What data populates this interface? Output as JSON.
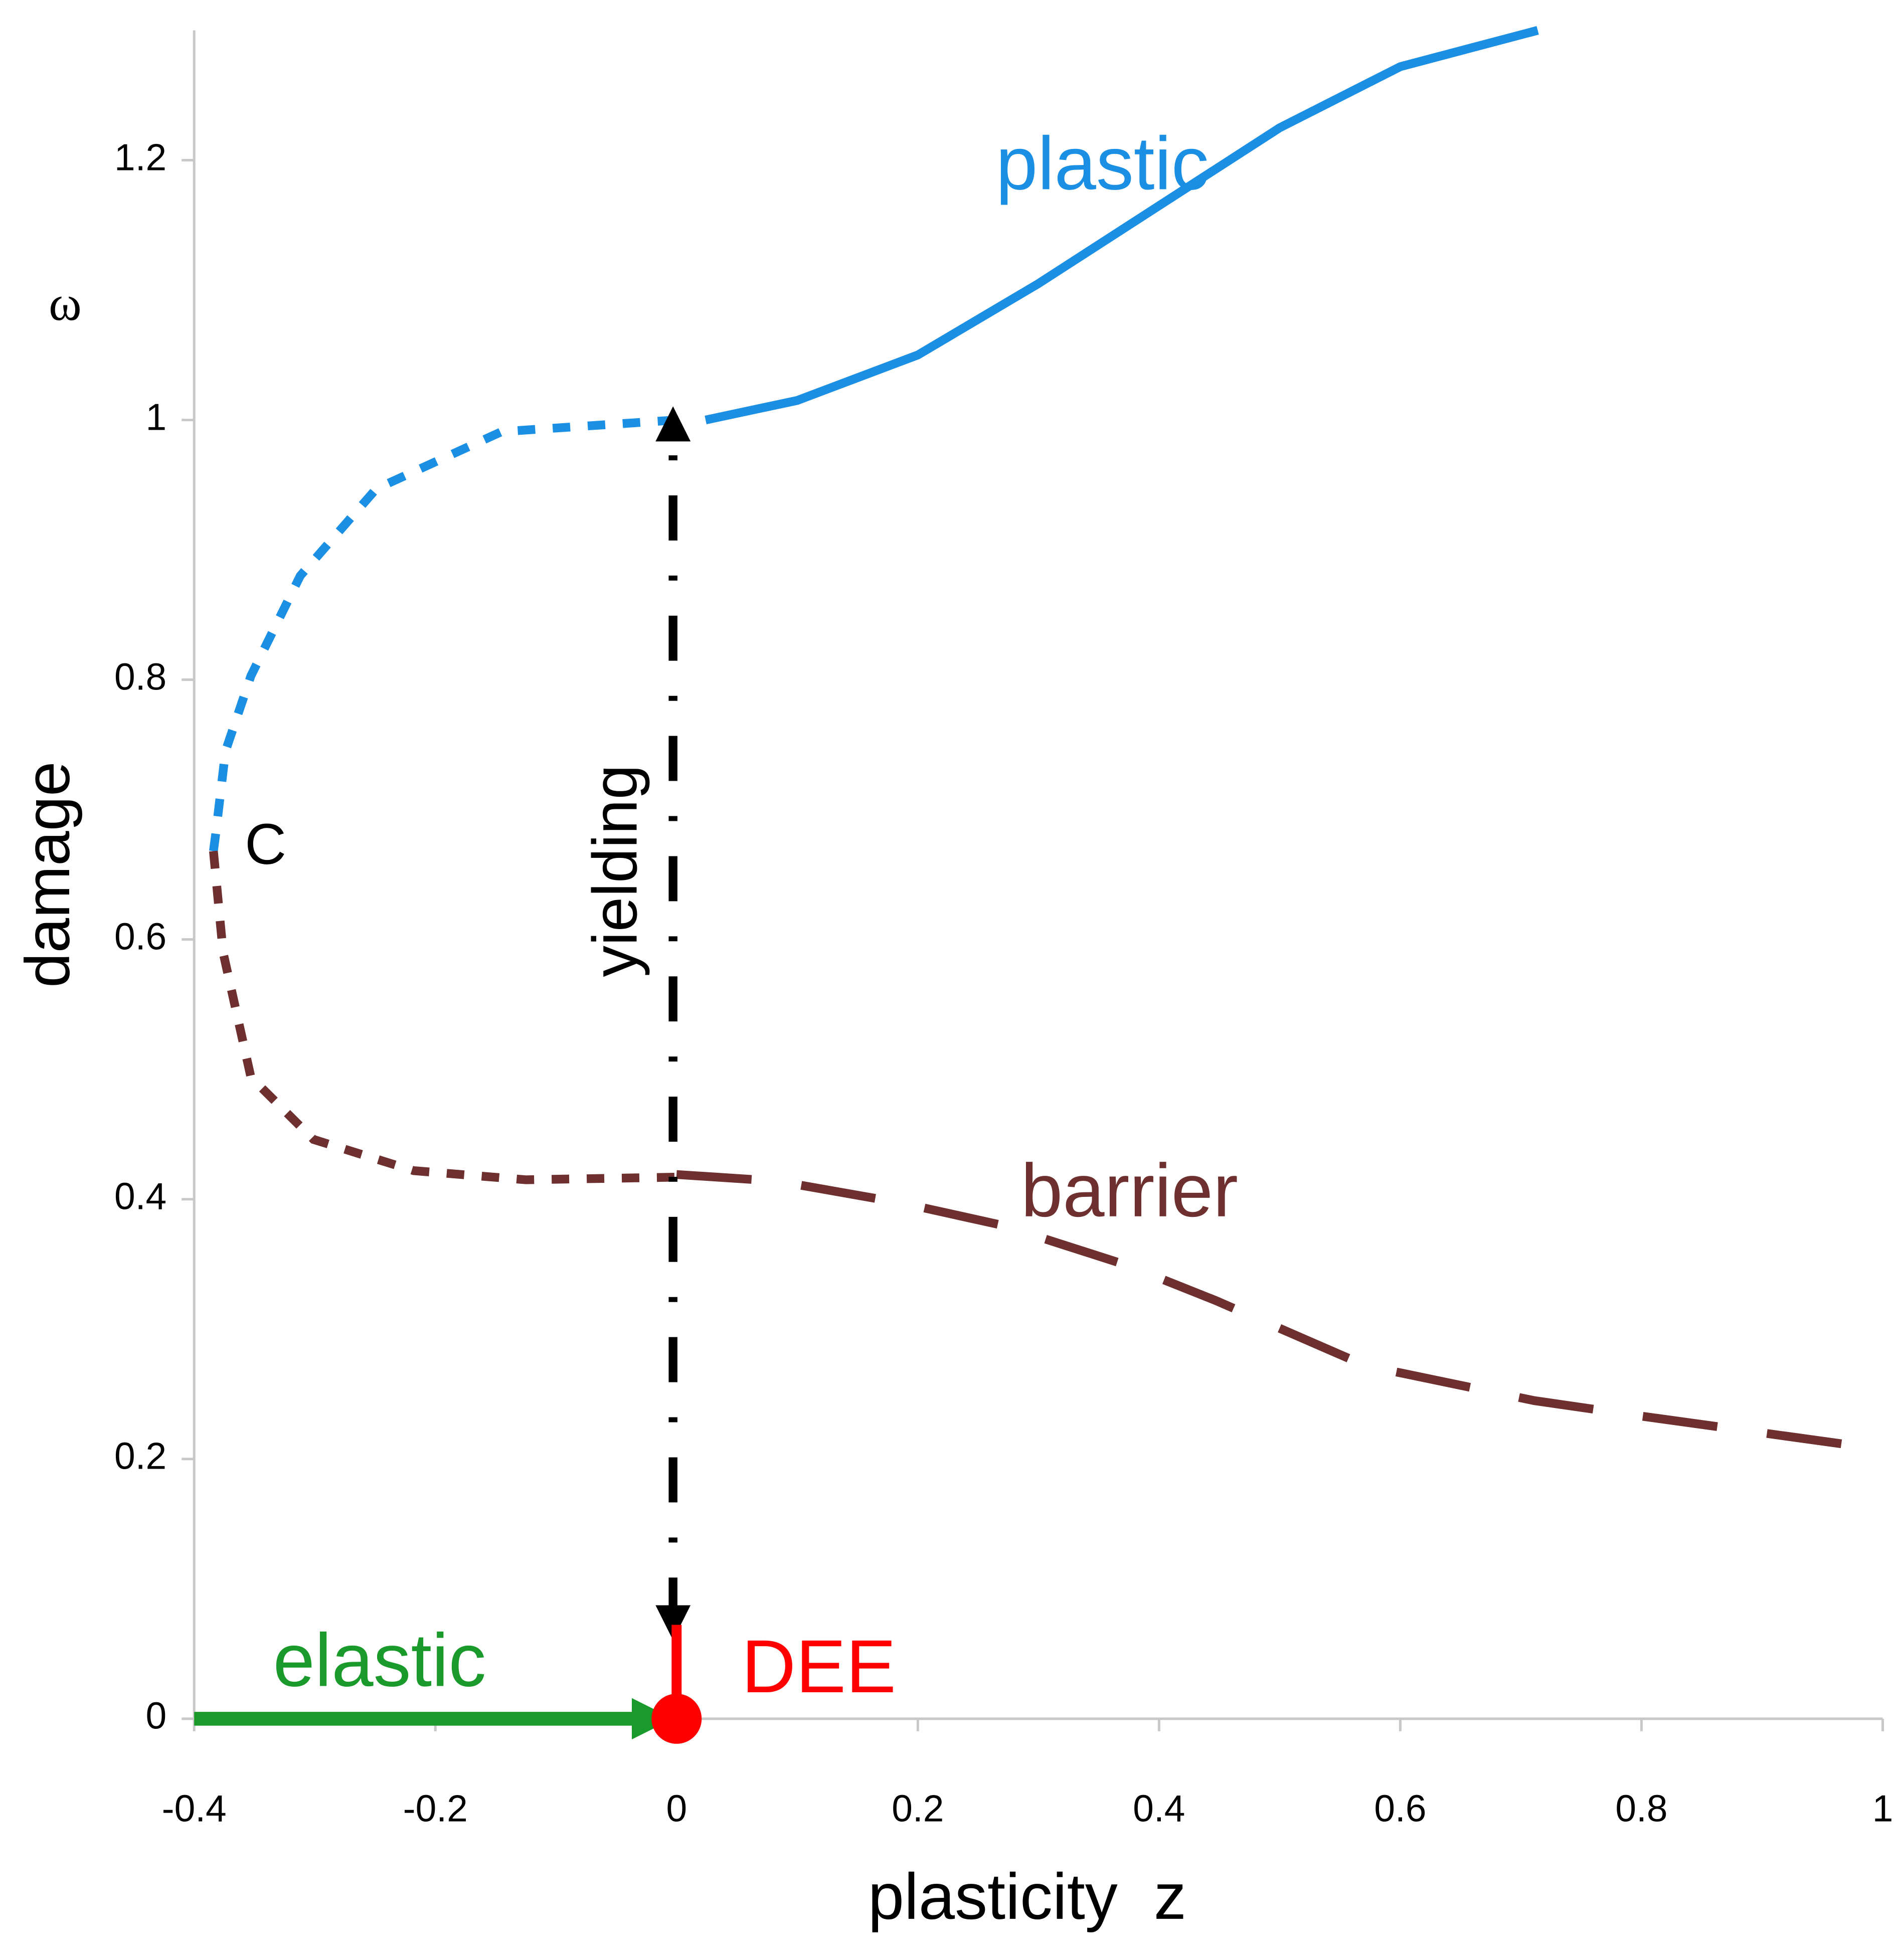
{
  "chart_data": {
    "type": "line",
    "xlabel": "plasticity  z",
    "ylabel": "damage",
    "ylabel2": "ω",
    "xlim": [
      -0.4,
      1
    ],
    "ylim": [
      0,
      1.3
    ],
    "xticks": [
      -0.4,
      -0.2,
      0,
      0.2,
      0.4,
      0.6,
      0.8,
      1
    ],
    "yticks": [
      0,
      0.2,
      0.4,
      0.6,
      0.8,
      1,
      1.2
    ],
    "series": [
      {
        "name": "plastic",
        "color": "#1a8fe3",
        "style": "solid",
        "x": [
          0.024,
          0.1,
          0.2,
          0.3,
          0.4,
          0.5,
          0.6,
          0.714
        ],
        "values": [
          1.0,
          1.015,
          1.05,
          1.105,
          1.165,
          1.225,
          1.272,
          1.3
        ]
      },
      {
        "color": "#1a8fe3",
        "style": "short-dash",
        "x": [
          -0.384,
          -0.382,
          -0.374,
          -0.353,
          -0.312,
          -0.249,
          -0.145,
          0
        ],
        "values": [
          0.668,
          0.682,
          0.745,
          0.803,
          0.88,
          0.947,
          0.991,
          1.0
        ]
      },
      {
        "color": "#6e2f2f",
        "style": "short-dash",
        "x": [
          -0.384,
          -0.376,
          -0.353,
          -0.301,
          -0.218,
          -0.125,
          0
        ],
        "values": [
          0.668,
          0.59,
          0.494,
          0.446,
          0.422,
          0.415,
          0.417
        ]
      },
      {
        "name": "barrier",
        "color": "#6e2f2f",
        "style": "long-dash",
        "x": [
          0,
          0.083,
          0.187,
          0.27,
          0.374,
          0.447,
          0.571,
          0.711,
          0.8,
          0.987
        ],
        "values": [
          0.419,
          0.414,
          0.397,
          0.38,
          0.349,
          0.322,
          0.272,
          0.245,
          0.233,
          0.209
        ]
      },
      {
        "name": "elastic",
        "color": "#1a9a2a",
        "style": "arrow",
        "x": [
          -0.4,
          -0.02
        ],
        "values": [
          0,
          0
        ]
      },
      {
        "name": "yielding",
        "color": "#000000",
        "style": "dash-dot-arrows",
        "x": [
          -0.003,
          -0.003
        ],
        "values": [
          0.074,
          0.997
        ]
      },
      {
        "name": "DEE",
        "color": "#ff0000",
        "style": "point",
        "x": [
          0
        ],
        "values": [
          0
        ]
      }
    ],
    "annotations": [
      {
        "text": "C",
        "x": -0.384,
        "y": 0.668
      }
    ]
  }
}
